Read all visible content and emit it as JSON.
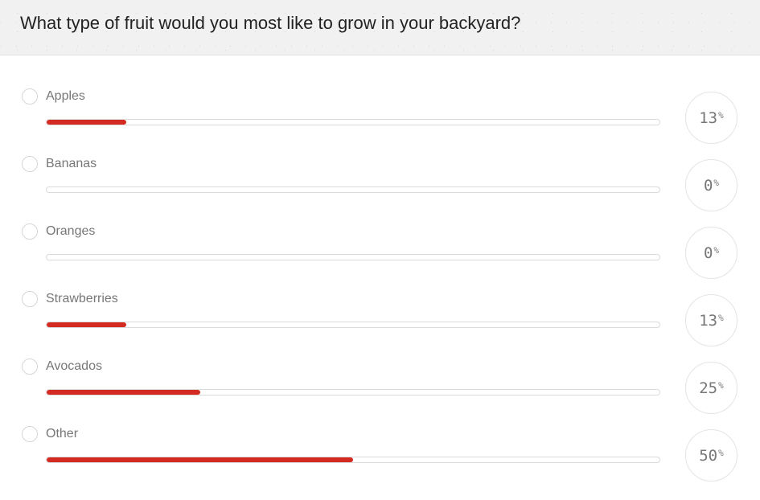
{
  "poll": {
    "question": "What type of fruit would you most like to grow in your backyard?",
    "percent_symbol": "%",
    "options": [
      {
        "label": "Apples",
        "percent": 13
      },
      {
        "label": "Bananas",
        "percent": 0
      },
      {
        "label": "Oranges",
        "percent": 0
      },
      {
        "label": "Strawberries",
        "percent": 13
      },
      {
        "label": "Avocados",
        "percent": 25
      },
      {
        "label": "Other",
        "percent": 50
      }
    ]
  },
  "colors": {
    "bar_fill": "#d32b22",
    "track_border": "#dadada"
  }
}
